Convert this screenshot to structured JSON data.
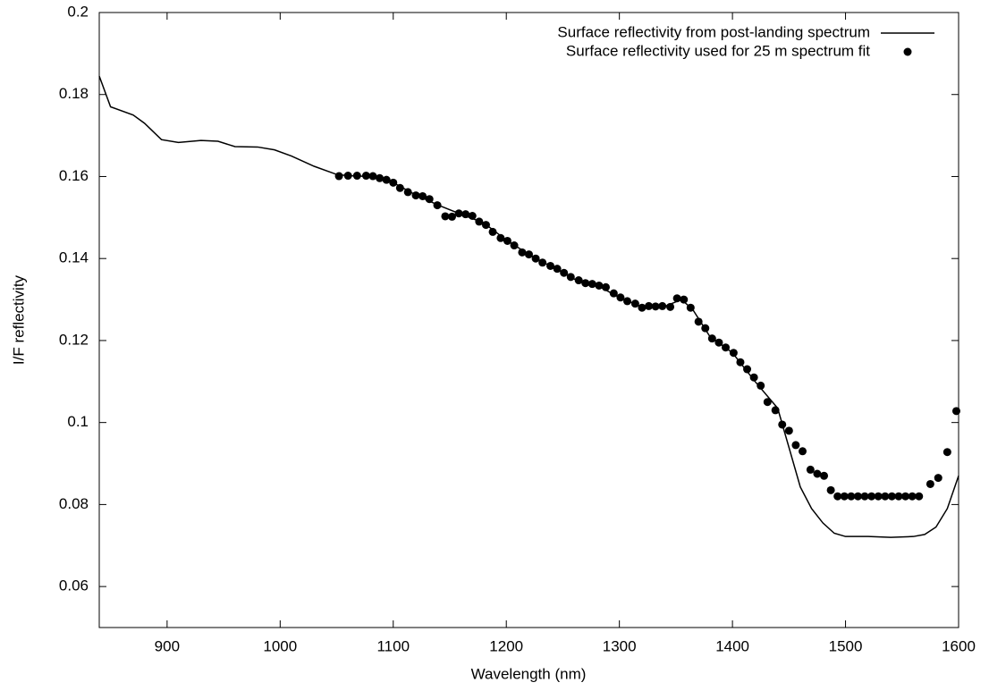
{
  "chart_data": {
    "type": "line",
    "x_label": "Wavelength (nm)",
    "y_label": "I/F reflectivity",
    "xlim": [
      840,
      1600
    ],
    "xticks": [
      900,
      1000,
      1100,
      1200,
      1300,
      1400,
      1500,
      1600
    ],
    "ylim": [
      0.05,
      0.2
    ],
    "yticks": [
      0.06,
      0.08,
      0.1,
      0.12,
      0.14,
      0.16,
      0.18,
      0.2
    ],
    "legend": "top-right",
    "series": [
      {
        "name": "Surface reflectivity from post-landing spectrum",
        "color": "#000000",
        "mode": "line",
        "x": [
          840,
          850,
          870,
          880,
          895,
          910,
          930,
          945,
          960,
          980,
          995,
          1010,
          1030,
          1050,
          1060,
          1080,
          1100,
          1120,
          1140,
          1160,
          1180,
          1200,
          1220,
          1240,
          1260,
          1280,
          1300,
          1320,
          1340,
          1355,
          1365,
          1380,
          1400,
          1420,
          1440,
          1460,
          1470,
          1480,
          1490,
          1500,
          1520,
          1540,
          1560,
          1570,
          1580,
          1590,
          1600
        ],
        "values": [
          0.1845,
          0.177,
          0.175,
          0.173,
          0.169,
          0.1683,
          0.1688,
          0.1686,
          0.1673,
          0.1672,
          0.1665,
          0.165,
          0.1625,
          0.1605,
          0.1602,
          0.16,
          0.1585,
          0.1555,
          0.153,
          0.1508,
          0.1487,
          0.1445,
          0.141,
          0.138,
          0.135,
          0.1335,
          0.1305,
          0.1282,
          0.1283,
          0.13,
          0.1275,
          0.121,
          0.117,
          0.11,
          0.1035,
          0.0843,
          0.079,
          0.0755,
          0.073,
          0.0722,
          0.0722,
          0.072,
          0.0722,
          0.0727,
          0.0745,
          0.079,
          0.087
        ]
      },
      {
        "name": "Surface reflectivity used for 25 m spectrum fit",
        "color": "#000000",
        "mode": "points",
        "x": [
          1052,
          1060,
          1068,
          1076,
          1082,
          1088,
          1094,
          1100,
          1106,
          1113,
          1120,
          1126,
          1132,
          1139,
          1146,
          1152,
          1158,
          1164,
          1170,
          1176,
          1182,
          1188,
          1195,
          1201,
          1207,
          1214,
          1220,
          1226,
          1232,
          1239,
          1245,
          1251,
          1257,
          1264,
          1270,
          1276,
          1282,
          1288,
          1295,
          1301,
          1307,
          1314,
          1320,
          1326,
          1332,
          1338,
          1345,
          1351,
          1357,
          1363,
          1370,
          1376,
          1382,
          1388,
          1394,
          1401,
          1407,
          1413,
          1419,
          1425,
          1431,
          1438,
          1444,
          1450,
          1456,
          1462,
          1469,
          1475,
          1481,
          1487,
          1493,
          1499,
          1505,
          1511,
          1517,
          1523,
          1529,
          1535,
          1541,
          1547,
          1553,
          1559,
          1565,
          1575,
          1582,
          1590,
          1598
        ],
        "values": [
          0.1601,
          0.1602,
          0.1602,
          0.1602,
          0.1601,
          0.1596,
          0.1592,
          0.1585,
          0.1572,
          0.1562,
          0.1554,
          0.1552,
          0.1545,
          0.153,
          0.1503,
          0.1502,
          0.151,
          0.1508,
          0.1504,
          0.149,
          0.1482,
          0.1465,
          0.145,
          0.1443,
          0.1432,
          0.1415,
          0.141,
          0.14,
          0.139,
          0.1382,
          0.1375,
          0.1365,
          0.1355,
          0.1347,
          0.134,
          0.1338,
          0.1334,
          0.133,
          0.1315,
          0.1305,
          0.1296,
          0.129,
          0.128,
          0.1284,
          0.1283,
          0.1284,
          0.1282,
          0.1303,
          0.13,
          0.128,
          0.1246,
          0.123,
          0.1205,
          0.1195,
          0.1183,
          0.117,
          0.1147,
          0.113,
          0.111,
          0.109,
          0.105,
          0.103,
          0.0995,
          0.098,
          0.0945,
          0.093,
          0.0885,
          0.0875,
          0.087,
          0.0835,
          0.082,
          0.082,
          0.082,
          0.082,
          0.082,
          0.082,
          0.082,
          0.082,
          0.082,
          0.082,
          0.082,
          0.082,
          0.082,
          0.085,
          0.0865,
          0.0928,
          0.1028
        ]
      }
    ]
  }
}
